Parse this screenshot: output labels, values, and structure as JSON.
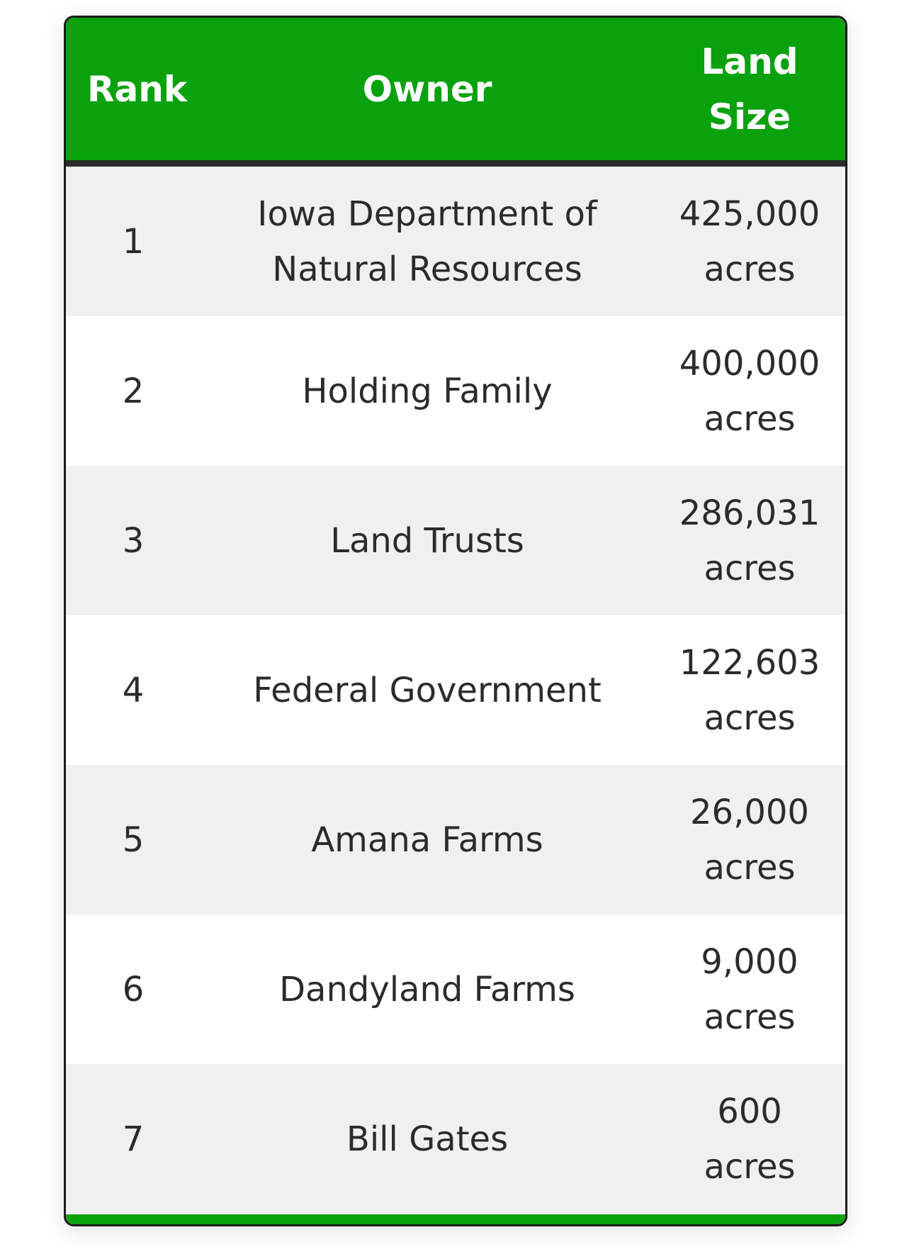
{
  "table": {
    "headers": {
      "rank": "Rank",
      "owner": "Owner",
      "size_line1": "Land",
      "size_line2": "Size"
    },
    "rows": [
      {
        "rank": "1",
        "owner": "Iowa Department of Natural Resources",
        "size_value": "425,000",
        "size_unit": "acres"
      },
      {
        "rank": "2",
        "owner": "Holding Family",
        "size_value": "400,000",
        "size_unit": "acres"
      },
      {
        "rank": "3",
        "owner": "Land Trusts",
        "size_value": "286,031",
        "size_unit": "acres"
      },
      {
        "rank": "4",
        "owner": "Federal Government",
        "size_value": "122,603",
        "size_unit": "acres"
      },
      {
        "rank": "5",
        "owner": "Amana Farms",
        "size_value": "26,000",
        "size_unit": "acres"
      },
      {
        "rank": "6",
        "owner": "Dandyland Farms",
        "size_value": "9,000",
        "size_unit": "acres"
      },
      {
        "rank": "7",
        "owner": "Bill Gates",
        "size_value": "600",
        "size_unit": "acres"
      }
    ]
  },
  "colors": {
    "header_green": "#0aa10f",
    "header_divider": "#2a2a2a",
    "row_alt": "#f0f0f0",
    "row_base": "#ffffff",
    "text": "#2b2b2b"
  }
}
